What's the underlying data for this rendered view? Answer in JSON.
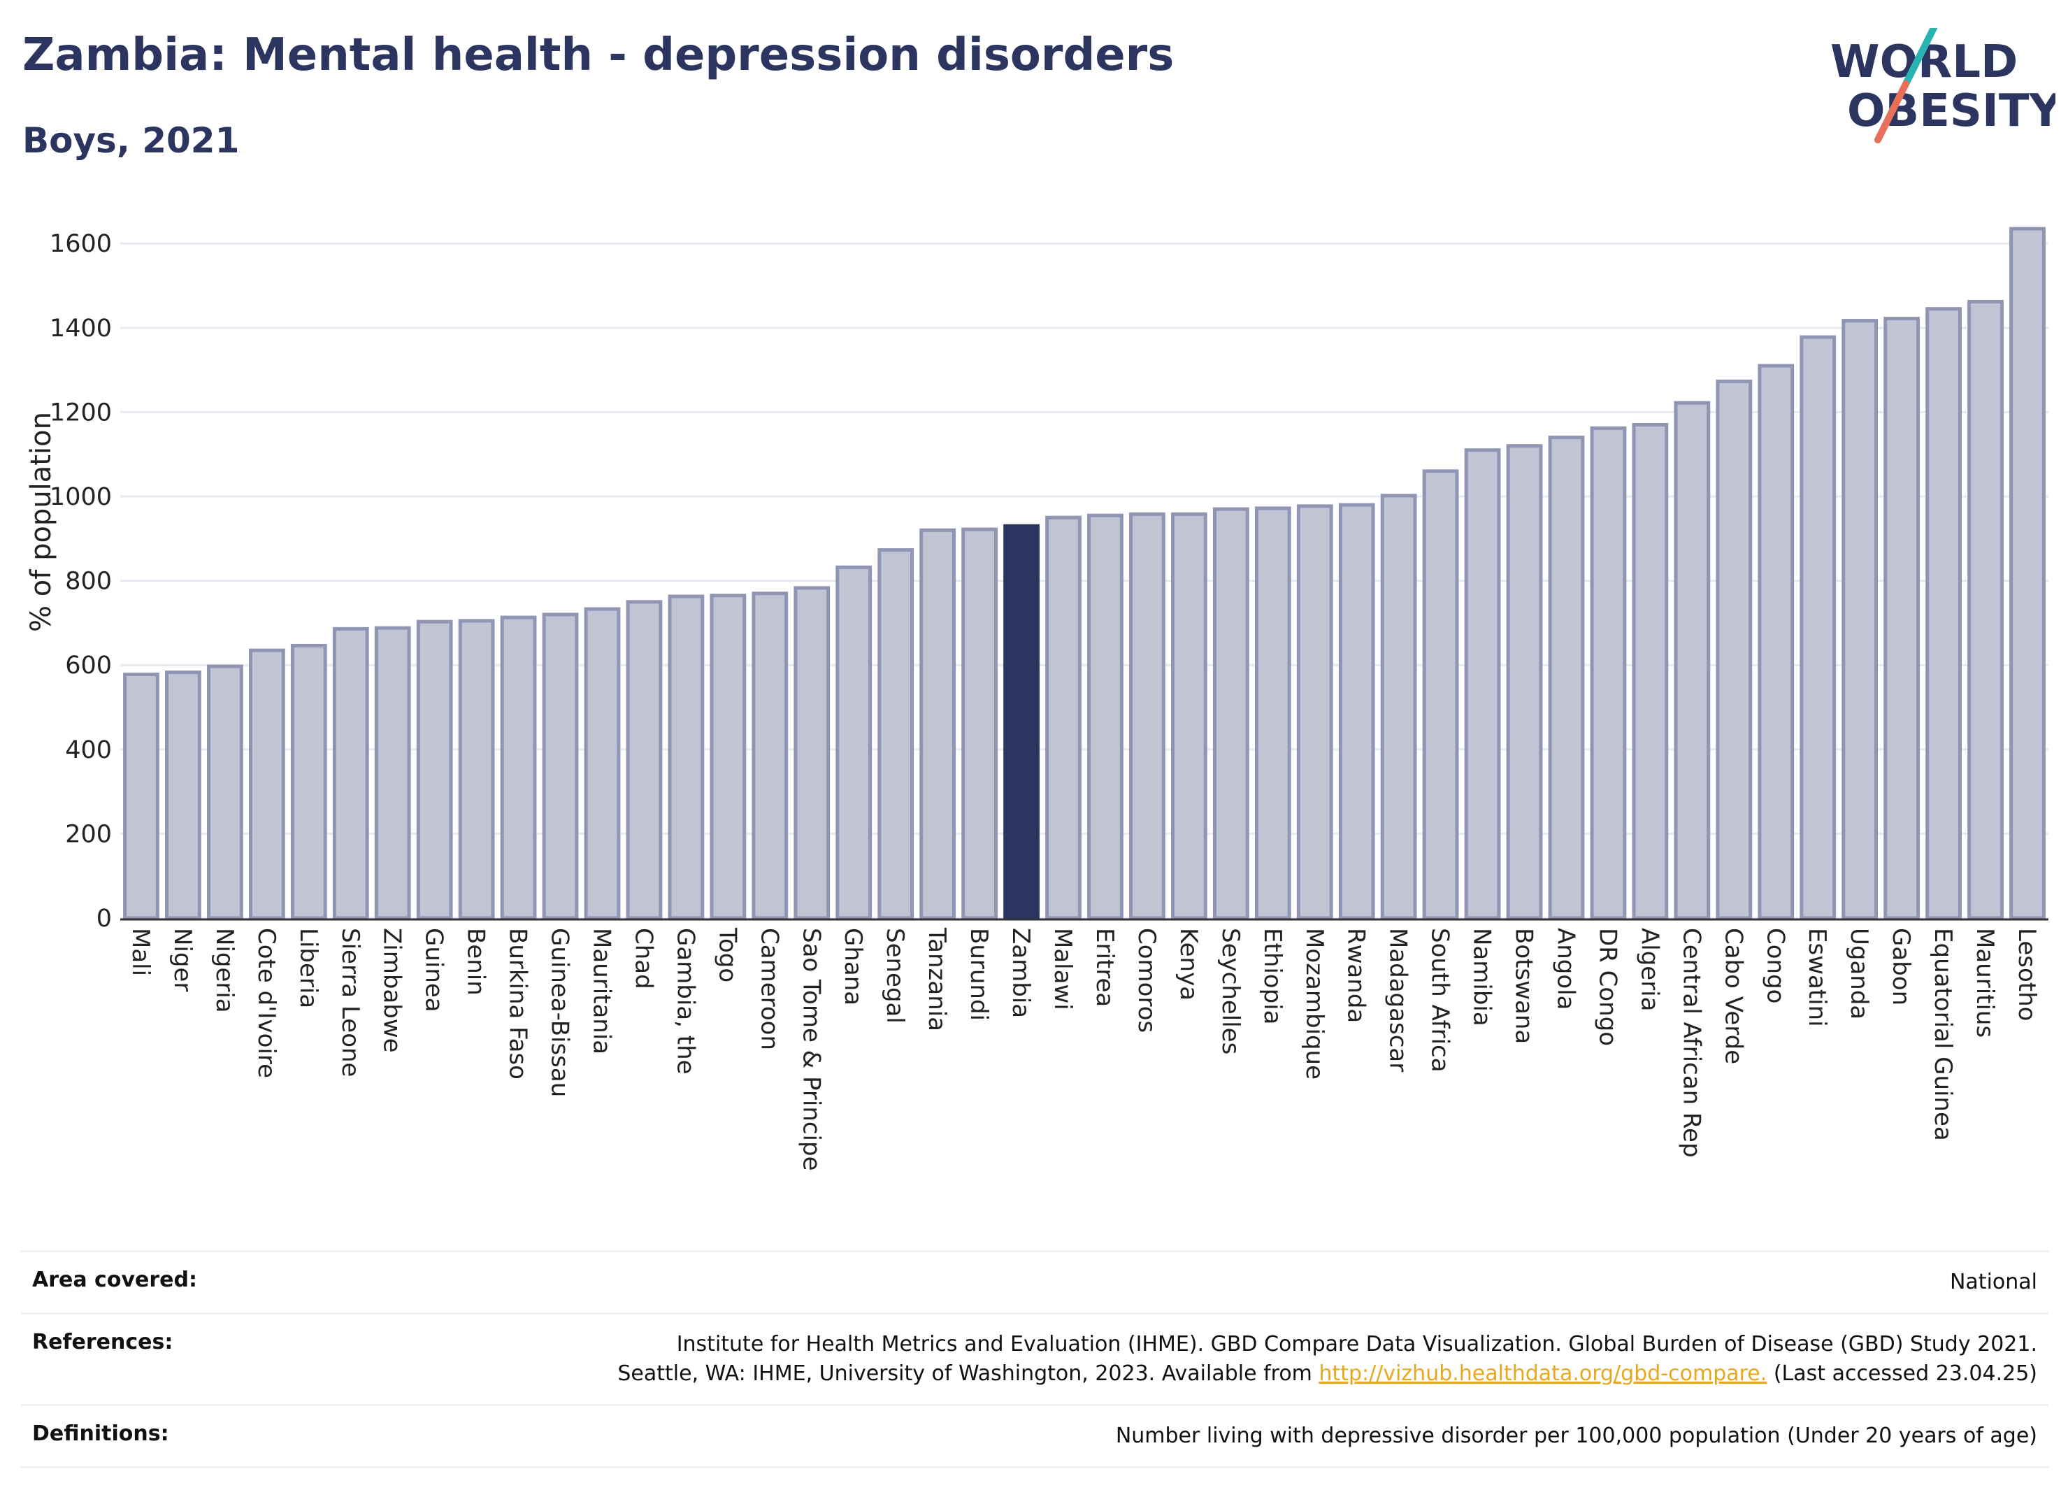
{
  "header": {
    "title": "Zambia: Mental health - depression disorders",
    "subtitle": "Boys, 2021"
  },
  "logo": {
    "line1": "WORLD",
    "line2": "OBESITY"
  },
  "chart_data": {
    "type": "bar",
    "title": "Zambia: Mental health - depression disorders",
    "subtitle": "Boys, 2021",
    "ylabel": "% of population",
    "xlabel": "",
    "ylim": [
      0,
      1680
    ],
    "yticks": [
      0,
      200,
      400,
      600,
      800,
      1000,
      1200,
      1400,
      1600
    ],
    "grid": true,
    "highlight": "Zambia",
    "colors": {
      "highlight": "#2b3560",
      "bar_fill": "#c0c4d3",
      "bar_stroke": "#8f95b2",
      "grid": "#e8e9f0"
    },
    "categories": [
      "Mali",
      "Niger",
      "Nigeria",
      "Cote d'Ivoire",
      "Liberia",
      "Sierra Leone",
      "Zimbabwe",
      "Guinea",
      "Benin",
      "Burkina Faso",
      "Guinea-Bissau",
      "Mauritania",
      "Chad",
      "Gambia, the",
      "Togo",
      "Cameroon",
      "Sao Tome & Principe",
      "Ghana",
      "Senegal",
      "Tanzania",
      "Burundi",
      "Zambia",
      "Malawi",
      "Eritrea",
      "Comoros",
      "Kenya",
      "Seychelles",
      "Ethiopia",
      "Mozambique",
      "Rwanda",
      "Madagascar",
      "South Africa",
      "Namibia",
      "Botswana",
      "Angola",
      "DR Congo",
      "Algeria",
      "Central African Rep",
      "Cabo Verde",
      "Congo",
      "Eswatini",
      "Uganda",
      "Gabon",
      "Equatorial Guinea",
      "Mauritius",
      "Lesotho"
    ],
    "values": [
      578,
      583,
      597,
      635,
      646,
      686,
      688,
      703,
      705,
      713,
      720,
      733,
      750,
      763,
      765,
      770,
      783,
      832,
      873,
      920,
      922,
      930,
      950,
      955,
      958,
      958,
      970,
      972,
      977,
      980,
      1002,
      1060,
      1110,
      1120,
      1140,
      1162,
      1170,
      1222,
      1273,
      1310,
      1378,
      1417,
      1422,
      1445,
      1462,
      1635
    ]
  },
  "footer": {
    "area_label": "Area covered:",
    "area_value": "National",
    "references_label": "References:",
    "references_line1": "Institute for Health Metrics and Evaluation (IHME). GBD Compare Data Visualization. Global Burden of Disease (GBD) Study 2021.",
    "references_line2_prefix": "Seattle, WA: IHME, University of Washington, 2023. Available from ",
    "references_link": "http://vizhub.healthdata.org/gbd-compare.",
    "references_line2_suffix": " (Last accessed 23.04.25)",
    "definitions_label": "Definitions:",
    "definitions_value": "Number living with depressive disorder per 100,000 population (Under 20 years of age)"
  }
}
